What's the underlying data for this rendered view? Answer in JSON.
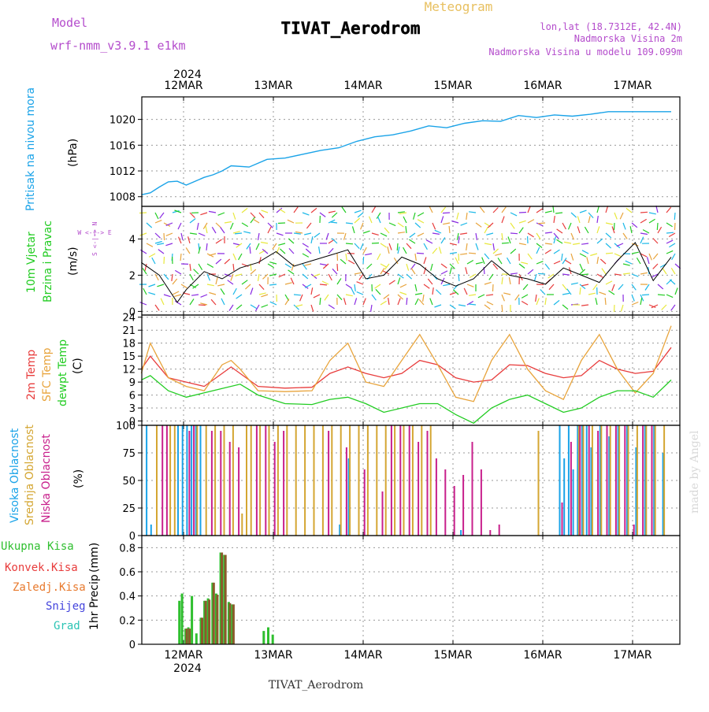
{
  "header": {
    "model_label": "Model",
    "model_name": "wrf-nmm_v3.9.1  e1km",
    "title": "TIVAT_Aerodrom",
    "subtitle": "Meteogram",
    "lonlat": "lon,lat (18.7312E, 42.4N)",
    "altitude": "Nadmorska Visina 2m",
    "model_altitude": "Nadmorska Visina u modelu 109.099m",
    "footer": "TIVAT_Aerodrom",
    "credit": "made by Angel",
    "year_top": "2024",
    "year_bottom": "2024"
  },
  "colors": {
    "pressure": "#1aa3e8",
    "temp2m": "#e83c3c",
    "sfc": "#e8a43c",
    "dewpt": "#22cc22",
    "high_cloud": "#1aa3e8",
    "mid_cloud": "#d4a632",
    "low_cloud": "#c8208c",
    "total_precip": "#2fbf2f",
    "conv_precip": "#e83c3c",
    "frozen_precip": "#e87a2e",
    "snow": "#4444dd",
    "graupel": "#2cc4b4",
    "model_label": "#b44ccc"
  },
  "chart_data": [
    {
      "type": "line",
      "name": "pressure",
      "ylabel": "Pritisak na nivou mora",
      "unit": "(hPa)",
      "x_ticks": [
        "12MAR",
        "13MAR",
        "14MAR",
        "15MAR",
        "16MAR",
        "17MAR"
      ],
      "ylim": [
        1006.5,
        1023.5
      ],
      "yticks": [
        1008,
        1012,
        1016,
        1020
      ],
      "grid": true,
      "series": [
        {
          "x": [
            0,
            0.1,
            0.2,
            0.3,
            0.4,
            0.5,
            0.6,
            0.7,
            0.8,
            0.9,
            1.0,
            1.2,
            1.4,
            1.6,
            1.8,
            2.0,
            2.2,
            2.4,
            2.6,
            2.8,
            3.0,
            3.2,
            3.4,
            3.6,
            3.8,
            4.0,
            4.2,
            4.4,
            4.6,
            4.8,
            5.0,
            5.2,
            5.4,
            5.6,
            5.9
          ],
          "y": [
            1008.3,
            1008.6,
            1009.5,
            1010.3,
            1010.4,
            1009.8,
            1010.4,
            1011.0,
            1011.4,
            1012.0,
            1012.8,
            1012.6,
            1013.8,
            1014.0,
            1014.6,
            1015.2,
            1015.6,
            1016.6,
            1017.3,
            1017.6,
            1018.2,
            1019.0,
            1018.7,
            1019.4,
            1019.8,
            1019.7,
            1020.6,
            1020.3,
            1020.7,
            1020.5,
            1020.8,
            1021.2,
            1021.2,
            1021.2,
            1021.2
          ]
        }
      ]
    },
    {
      "type": "line",
      "name": "wind",
      "ylabel_line1": "10m Vjetar",
      "ylabel_line2": "Brzina i Pravac",
      "unit": "(m/s)",
      "compass": "W  <-|->  E",
      "compass_vertical": "S  <-|->  N",
      "ylim": [
        -0.2,
        5.8
      ],
      "yticks": [
        0,
        2,
        4
      ],
      "grid": true,
      "series": [
        {
          "x": [
            0,
            0.2,
            0.4,
            0.5,
            0.7,
            0.9,
            1.1,
            1.3,
            1.5,
            1.7,
            1.9,
            2.1,
            2.3,
            2.5,
            2.7,
            2.9,
            3.1,
            3.3,
            3.5,
            3.7,
            3.9,
            4.1,
            4.3,
            4.5,
            4.7,
            4.9,
            5.1,
            5.3,
            5.5,
            5.7,
            5.9
          ],
          "y": [
            2.7,
            2.0,
            0.5,
            1.2,
            2.2,
            1.8,
            2.4,
            2.7,
            3.3,
            2.5,
            2.8,
            3.1,
            3.4,
            1.8,
            2.0,
            3.0,
            2.6,
            1.8,
            1.4,
            1.8,
            2.8,
            2.0,
            1.8,
            1.5,
            2.4,
            2.0,
            1.6,
            2.8,
            3.8,
            1.7,
            3.0
          ]
        }
      ]
    },
    {
      "type": "line",
      "name": "temperature",
      "ylabel_2m": "2m Temp",
      "ylabel_sfc": "SFC Temp",
      "ylabel_dew": "dewpt Temp",
      "unit": "(C)",
      "ylim": [
        -1,
        24.5
      ],
      "yticks": [
        0,
        3,
        6,
        9,
        12,
        15,
        18,
        21,
        24
      ],
      "grid": true,
      "series": [
        {
          "name": "2m Temp",
          "x": [
            0,
            0.1,
            0.3,
            0.5,
            0.7,
            0.9,
            1.0,
            1.3,
            1.6,
            1.9,
            2.1,
            2.3,
            2.5,
            2.7,
            2.9,
            3.1,
            3.3,
            3.5,
            3.7,
            3.9,
            4.1,
            4.3,
            4.5,
            4.7,
            4.9,
            5.1,
            5.3,
            5.5,
            5.7,
            5.9
          ],
          "y": [
            12,
            15,
            10,
            9,
            8,
            11,
            12.5,
            8,
            7.6,
            7.8,
            11,
            12.5,
            11,
            10,
            11,
            14,
            13,
            10,
            9,
            9.5,
            13,
            12.8,
            11,
            10,
            10.5,
            14,
            12,
            11,
            11.5,
            17
          ]
        },
        {
          "name": "SFC Temp",
          "x": [
            0,
            0.1,
            0.3,
            0.5,
            0.7,
            0.9,
            1.0,
            1.1,
            1.3,
            1.6,
            1.9,
            2.1,
            2.3,
            2.5,
            2.7,
            2.9,
            3.1,
            3.3,
            3.5,
            3.7,
            3.9,
            4.1,
            4.3,
            4.5,
            4.7,
            4.9,
            5.1,
            5.3,
            5.5,
            5.7,
            5.9
          ],
          "y": [
            11,
            18,
            10,
            8,
            7,
            13,
            14,
            12,
            7,
            6.8,
            7,
            14,
            18,
            9,
            8,
            14,
            20,
            13,
            5.5,
            4.5,
            14,
            20,
            12,
            7,
            5,
            14,
            20,
            12,
            6.5,
            11,
            22
          ]
        },
        {
          "name": "dewpt Temp",
          "x": [
            0,
            0.1,
            0.3,
            0.5,
            0.7,
            0.9,
            1.1,
            1.3,
            1.6,
            1.9,
            2.1,
            2.3,
            2.5,
            2.7,
            2.9,
            3.1,
            3.3,
            3.5,
            3.7,
            3.9,
            4.1,
            4.3,
            4.5,
            4.7,
            4.9,
            5.1,
            5.3,
            5.5,
            5.7,
            5.9
          ],
          "y": [
            9.5,
            10.5,
            7,
            5.5,
            6.5,
            7.5,
            8.5,
            6,
            4,
            3.8,
            5,
            5.5,
            4,
            2,
            3,
            4,
            4,
            1.5,
            -0.5,
            3,
            5,
            6,
            4,
            2,
            3,
            5.5,
            7,
            7,
            5.5,
            9.5
          ]
        }
      ]
    },
    {
      "type": "bar",
      "name": "cloud",
      "ylabel_high": "Visoka Oblacnost",
      "ylabel_mid": "Srednja Oblacnost",
      "ylabel_low": "Niska Oblacnost",
      "unit": "(%)",
      "ylim": [
        0,
        100
      ],
      "yticks": [
        0,
        25,
        50,
        75,
        100
      ],
      "grid": true,
      "series": [
        {
          "name": "Visoka Oblacnost",
          "x": [
            0.05,
            0.1,
            0.4,
            0.45,
            0.5,
            0.55,
            0.6,
            0.65,
            2.2,
            2.3,
            3.55,
            4.65,
            4.7,
            4.75,
            4.8,
            4.85,
            4.9,
            4.95,
            5.0,
            5.1,
            5.2,
            5.3,
            5.4,
            5.5,
            5.6,
            5.7,
            5.8
          ],
          "values": [
            100,
            10,
            100,
            100,
            100,
            100,
            100,
            100,
            10,
            70,
            5,
            100,
            70,
            100,
            60,
            100,
            100,
            100,
            80,
            100,
            90,
            100,
            100,
            80,
            100,
            100,
            75
          ]
        },
        {
          "name": "Srednja Oblacnost",
          "x": [
            0.15,
            0.3,
            0.35,
            0.6,
            0.7,
            0.8,
            0.9,
            1.0,
            1.1,
            1.15,
            1.2,
            1.3,
            1.4,
            1.5,
            1.6,
            1.7,
            1.8,
            1.9,
            2.0,
            2.1,
            2.2,
            2.3,
            2.4,
            2.5,
            2.6,
            2.7,
            2.8,
            2.9,
            3.0,
            3.1,
            3.2,
            4.4,
            4.85,
            4.9,
            5.0,
            5.1,
            5.2,
            5.3,
            5.4,
            5.5,
            5.6,
            5.7,
            5.8
          ],
          "values": [
            100,
            100,
            100,
            100,
            100,
            100,
            100,
            100,
            20,
            100,
            100,
            100,
            100,
            100,
            100,
            100,
            100,
            100,
            100,
            100,
            100,
            100,
            100,
            100,
            100,
            100,
            100,
            100,
            100,
            100,
            100,
            95,
            100,
            100,
            100,
            100,
            100,
            100,
            100,
            100,
            100,
            100,
            100
          ]
        },
        {
          "name": "Niska Oblacnost",
          "x": [
            0.2,
            0.25,
            0.5,
            0.55,
            0.75,
            0.85,
            0.95,
            1.05,
            1.25,
            1.35,
            1.45,
            1.55,
            2.05,
            2.25,
            2.45,
            2.65,
            2.75,
            2.85,
            2.95,
            3.05,
            3.15,
            3.25,
            3.35,
            3.45,
            3.55,
            3.65,
            3.75,
            3.85,
            3.95,
            4.05,
            4.15,
            4.25,
            4.35,
            4.45,
            4.55,
            4.65,
            4.75,
            4.85,
            4.95,
            5.05,
            5.15,
            5.25,
            5.35,
            5.45,
            5.55,
            5.65,
            5.75
          ],
          "values": [
            100,
            100,
            95,
            100,
            95,
            95,
            85,
            80,
            100,
            100,
            85,
            95,
            95,
            80,
            60,
            40,
            100,
            100,
            100,
            85,
            95,
            70,
            60,
            45,
            55,
            85,
            60,
            5,
            10,
            0,
            0,
            0,
            0,
            0,
            0,
            30,
            85,
            100,
            100,
            95,
            100,
            100,
            100,
            10,
            100,
            100,
            0
          ]
        }
      ]
    },
    {
      "type": "bar",
      "name": "precipitation",
      "ylabel_total": "Ukupna Kisa",
      "ylabel_conv": "Konvek.Kisa",
      "ylabel_frozen": "Zaledj.Kisa",
      "ylabel_snow": "Snijeg",
      "ylabel_grad": "Grad",
      "ylabel_precip": "1hr Precip",
      "unit": "(mm)",
      "ylim": [
        0,
        0.9
      ],
      "yticks": [
        0,
        0.2,
        0.4,
        0.6,
        0.8
      ],
      "grid": true,
      "series": [
        {
          "name": "Ukupna Kisa",
          "x": [
            0.41,
            0.44,
            0.48,
            0.51,
            0.55,
            0.6,
            0.65,
            0.69,
            0.73,
            0.78,
            0.82,
            0.87,
            0.91,
            0.96,
            1.0,
            1.04,
            1.08,
            1.35,
            1.4,
            1.45
          ],
          "values": [
            0.36,
            0.42,
            0.13,
            0.14,
            0.4,
            0.09,
            0.22,
            0.36,
            0.38,
            0.51,
            0.42,
            0.76,
            0.74,
            0.35,
            0.33,
            0.0,
            0.0,
            0.11,
            0.14,
            0.08
          ]
        },
        {
          "name": "Konvek.Kisa",
          "x": [
            0.48,
            0.51,
            0.55,
            0.65,
            0.69,
            0.73,
            0.78,
            0.82,
            0.87,
            0.91,
            0.96,
            1.0
          ],
          "values": [
            0.13,
            0.13,
            0.0,
            0.22,
            0.36,
            0.37,
            0.51,
            0.41,
            0.76,
            0.74,
            0.34,
            0.33
          ]
        }
      ]
    }
  ]
}
